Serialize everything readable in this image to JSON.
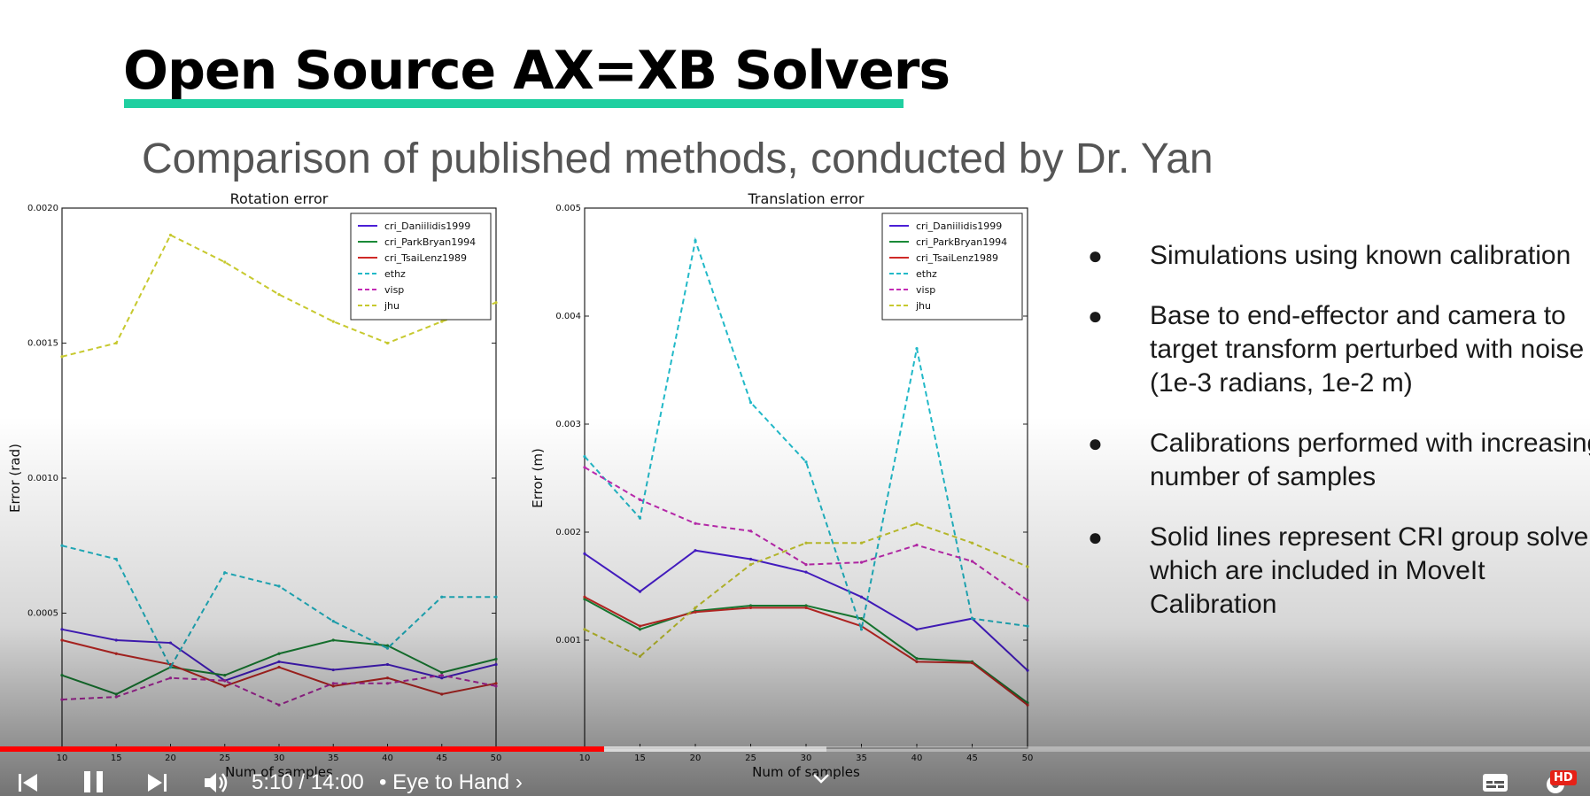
{
  "slide": {
    "title": "Open Source AX=XB Solvers",
    "subtitle": "Comparison of published methods, conducted by Dr. Yan",
    "bullets": [
      "Simulations using known calibration",
      "Base to end-effector and camera to target transform perturbed with noise (1e-3 radians, 1e-2 m)",
      "Calibrations performed with increasing number of samples",
      "Solid lines represent CRI group solvers, which are included in MoveIt Calibration"
    ],
    "accent_color": "#1fcfa0"
  },
  "chart_data": [
    {
      "type": "line",
      "title": "Rotation error",
      "xlabel": "Num of samples",
      "ylabel": "Error (rad)",
      "x": [
        10,
        15,
        20,
        25,
        30,
        35,
        40,
        45,
        50
      ],
      "xlim": [
        10,
        50
      ],
      "ylim": [
        0.0,
        0.002
      ],
      "yticks": [
        "0.0005",
        "0.0010",
        "0.0015",
        "0.0020"
      ],
      "legend_position": "top-right",
      "series": [
        {
          "name": "cri_Daniilidis1999",
          "color": "#4b1fd6",
          "dash": "solid",
          "values": [
            0.00044,
            0.0004,
            0.00039,
            0.00025,
            0.00032,
            0.00029,
            0.00031,
            0.00026,
            0.00031
          ]
        },
        {
          "name": "cri_ParkBryan1994",
          "color": "#1a8a38",
          "dash": "solid",
          "values": [
            0.00027,
            0.0002,
            0.0003,
            0.00027,
            0.00035,
            0.0004,
            0.00038,
            0.00028,
            0.00033
          ]
        },
        {
          "name": "cri_TsaiLenz1989",
          "color": "#cf2a27",
          "dash": "solid",
          "values": [
            0.0004,
            0.00035,
            0.00031,
            0.00023,
            0.0003,
            0.00023,
            0.00026,
            0.0002,
            0.00024
          ]
        },
        {
          "name": "ethz",
          "color": "#22b9c8",
          "dash": "dashed",
          "values": [
            0.00075,
            0.0007,
            0.0003,
            0.00065,
            0.0006,
            0.00047,
            0.00037,
            0.00056,
            0.00056
          ]
        },
        {
          "name": "visp",
          "color": "#c32bb5",
          "dash": "dashed",
          "values": [
            0.00018,
            0.00019,
            0.00026,
            0.00025,
            0.00016,
            0.00024,
            0.00024,
            0.00027,
            0.00023
          ]
        },
        {
          "name": "jhu",
          "color": "#c7c92f",
          "dash": "dashed",
          "values": [
            0.00145,
            0.0015,
            0.0019,
            0.0018,
            0.00168,
            0.00158,
            0.0015,
            0.00158,
            0.00165
          ]
        }
      ]
    },
    {
      "type": "line",
      "title": "Translation error",
      "xlabel": "Num of samples",
      "ylabel": "Error (m)",
      "x": [
        10,
        15,
        20,
        25,
        30,
        35,
        40,
        45,
        50
      ],
      "xlim": [
        10,
        50
      ],
      "ylim": [
        0.0,
        0.005
      ],
      "yticks": [
        "0.001",
        "0.002",
        "0.003",
        "0.004",
        "0.005"
      ],
      "legend_position": "top-right",
      "series": [
        {
          "name": "cri_Daniilidis1999",
          "color": "#4b1fd6",
          "dash": "solid",
          "values": [
            0.0018,
            0.00145,
            0.00183,
            0.00175,
            0.00163,
            0.0014,
            0.0011,
            0.0012,
            0.00072
          ]
        },
        {
          "name": "cri_ParkBryan1994",
          "color": "#1a8a38",
          "dash": "solid",
          "values": [
            0.00138,
            0.0011,
            0.00127,
            0.00132,
            0.00132,
            0.0012,
            0.00083,
            0.0008,
            0.00042
          ]
        },
        {
          "name": "cri_TsaiLenz1989",
          "color": "#cf2a27",
          "dash": "solid",
          "values": [
            0.0014,
            0.00113,
            0.00126,
            0.0013,
            0.0013,
            0.00113,
            0.0008,
            0.00079,
            0.0004
          ]
        },
        {
          "name": "ethz",
          "color": "#22b9c8",
          "dash": "dashed",
          "values": [
            0.0027,
            0.00213,
            0.0047,
            0.0032,
            0.00265,
            0.0011,
            0.0037,
            0.0012,
            0.00113
          ]
        },
        {
          "name": "visp",
          "color": "#c32bb5",
          "dash": "dashed",
          "values": [
            0.0026,
            0.0023,
            0.00208,
            0.00201,
            0.0017,
            0.00172,
            0.00188,
            0.00173,
            0.00137
          ]
        },
        {
          "name": "jhu",
          "color": "#c7c92f",
          "dash": "dashed",
          "values": [
            0.0011,
            0.00085,
            0.0013,
            0.0017,
            0.0019,
            0.0019,
            0.00208,
            0.0019,
            0.00168
          ]
        }
      ]
    }
  ],
  "player": {
    "time": "5:10 / 14:00",
    "chapter": "• Eye to Hand ›",
    "hd_badge": "HD",
    "progress_played": 0.38,
    "progress_color": "#ff0000",
    "icons": [
      "previous-icon",
      "pause-icon",
      "next-icon",
      "volume-icon",
      "chevron-down-icon",
      "subtitles-icon",
      "settings-icon"
    ]
  }
}
